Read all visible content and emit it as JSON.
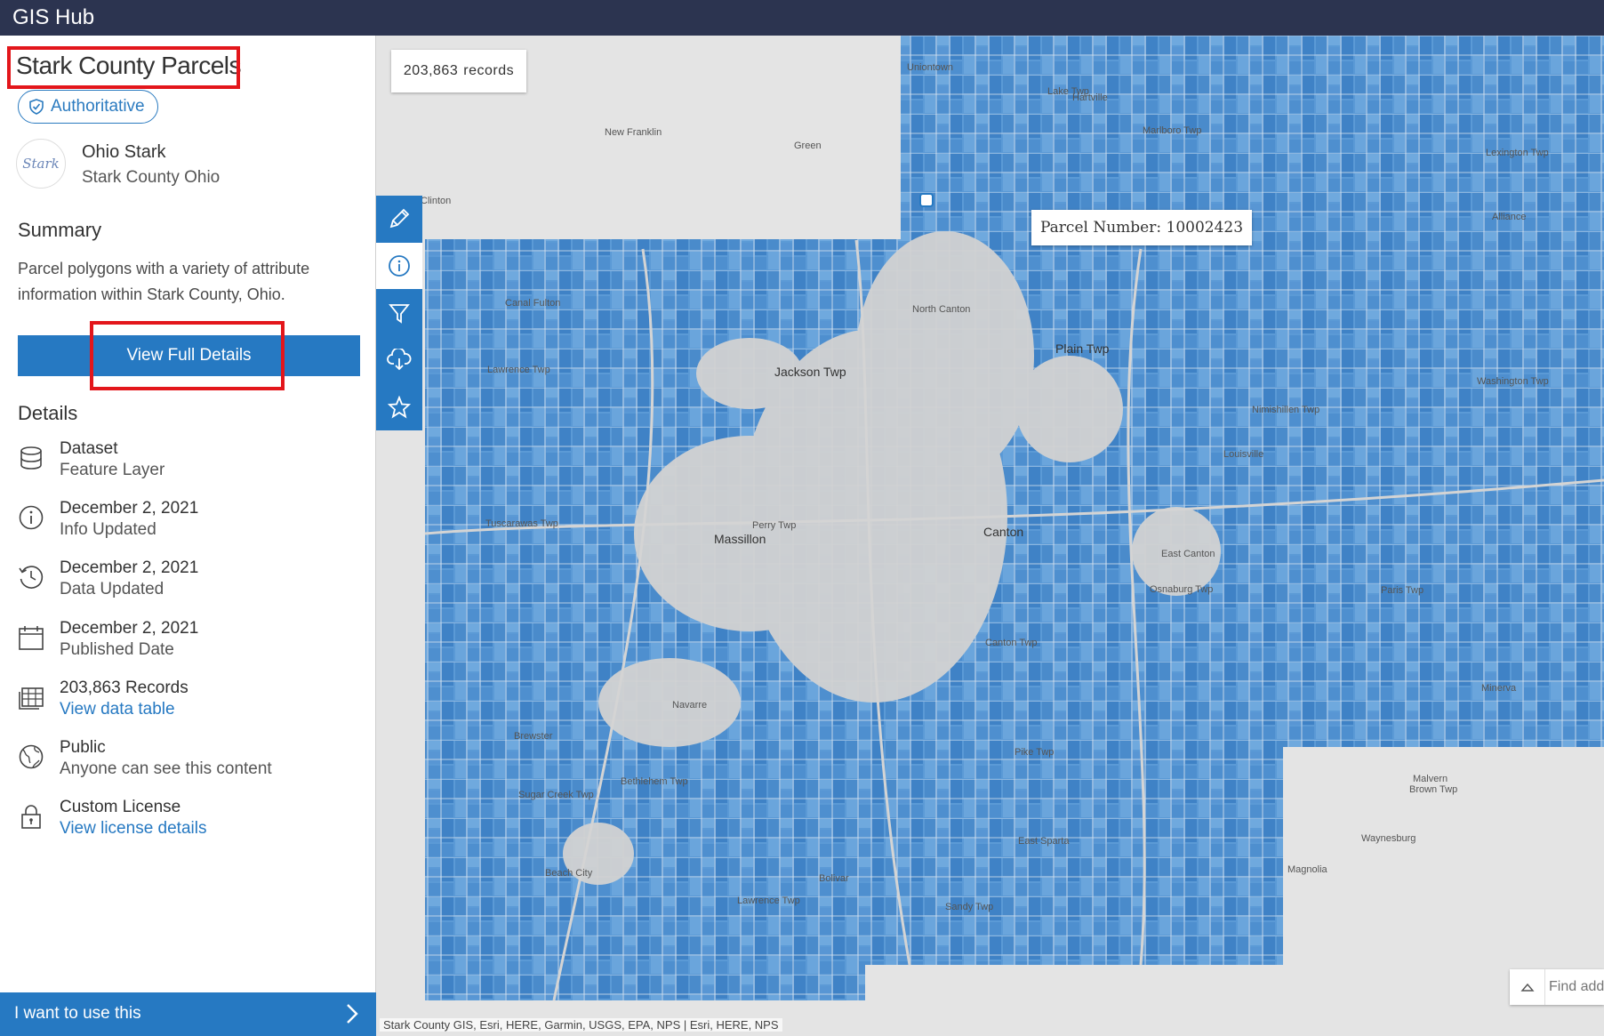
{
  "app": {
    "title": "GIS Hub"
  },
  "dataset": {
    "title": "Stark County Parcels",
    "badge": "Authoritative",
    "org_logo_text": "Stark",
    "org_name": "Ohio Stark",
    "org_sub": "Stark County Ohio"
  },
  "summary": {
    "heading": "Summary",
    "text": "Parcel polygons with a variety of attribute information within Stark County, Ohio.",
    "button": "View Full Details"
  },
  "details": {
    "heading": "Details",
    "items": [
      {
        "icon": "database-icon",
        "title": "Dataset",
        "sub": "Feature Layer",
        "sub_is_link": false
      },
      {
        "icon": "info-icon",
        "title": "December 2, 2021",
        "sub": "Info Updated",
        "sub_is_link": false
      },
      {
        "icon": "history-icon",
        "title": "December 2, 2021",
        "sub": "Data Updated",
        "sub_is_link": false
      },
      {
        "icon": "calendar-icon",
        "title": "December 2, 2021",
        "sub": "Published Date",
        "sub_is_link": false
      },
      {
        "icon": "table-icon",
        "title": "203,863 Records",
        "sub": "View data table",
        "sub_is_link": true
      },
      {
        "icon": "globe-icon",
        "title": "Public",
        "sub": "Anyone can see this content",
        "sub_is_link": false
      },
      {
        "icon": "lock-icon",
        "title": "Custom License",
        "sub": "View license details",
        "sub_is_link": true
      }
    ]
  },
  "use_bar": {
    "label": "I want to use this"
  },
  "map": {
    "records_count": "203,863",
    "records_label": "records",
    "popup": "Parcel Number: 10002423",
    "attribution": "Stark County GIS, Esri, HERE, Garmin, USGS, EPA, NPS | Esri, HERE, NPS",
    "search_placeholder": "Find add",
    "tools": [
      "pencil-icon",
      "info-icon",
      "filter-icon",
      "cloud-download-icon",
      "star-icon"
    ],
    "places": [
      {
        "name": "Uniontown",
        "big": false
      },
      {
        "name": "Lake Twp",
        "big": false
      },
      {
        "name": "Hartville",
        "big": false
      },
      {
        "name": "Marlboro Twp",
        "big": false
      },
      {
        "name": "New Franklin",
        "big": false
      },
      {
        "name": "Green",
        "big": false
      },
      {
        "name": "Clinton",
        "big": false
      },
      {
        "name": "Lexington Twp",
        "big": false
      },
      {
        "name": "Alliance",
        "big": false
      },
      {
        "name": "Canal Fulton",
        "big": false
      },
      {
        "name": "North Canton",
        "big": false
      },
      {
        "name": "Plain Twp",
        "big": true
      },
      {
        "name": "Lawrence Twp",
        "big": false
      },
      {
        "name": "Jackson Twp",
        "big": true
      },
      {
        "name": "Washington Twp",
        "big": false
      },
      {
        "name": "Nimishillen Twp",
        "big": false
      },
      {
        "name": "Louisville",
        "big": false
      },
      {
        "name": "Perry Twp",
        "big": false
      },
      {
        "name": "Massillon",
        "big": true
      },
      {
        "name": "Canton",
        "big": true
      },
      {
        "name": "Tuscarawas Twp",
        "big": false
      },
      {
        "name": "East Canton",
        "big": false
      },
      {
        "name": "Osnaburg Twp",
        "big": false
      },
      {
        "name": "Paris Twp",
        "big": false
      },
      {
        "name": "Canton Twp",
        "big": false
      },
      {
        "name": "Minerva",
        "big": false
      },
      {
        "name": "Navarre",
        "big": false
      },
      {
        "name": "Brewster",
        "big": false
      },
      {
        "name": "Pike Twp",
        "big": false
      },
      {
        "name": "Bethlehem Twp",
        "big": false
      },
      {
        "name": "Malvern",
        "big": false
      },
      {
        "name": "Brown Twp",
        "big": false
      },
      {
        "name": "Sugar Creek Twp",
        "big": false
      },
      {
        "name": "East Sparta",
        "big": false
      },
      {
        "name": "Waynesburg",
        "big": false
      },
      {
        "name": "Beach City",
        "big": false
      },
      {
        "name": "Magnolia",
        "big": false
      },
      {
        "name": "Bolivar",
        "big": false
      },
      {
        "name": "Lawrence Twp",
        "big": false
      },
      {
        "name": "Sandy Twp",
        "big": false
      }
    ]
  },
  "colors": {
    "topbar": "#2c3450",
    "accent": "#2679c2",
    "parcel": "#4a8fd0",
    "highlight": "#e3161b"
  }
}
